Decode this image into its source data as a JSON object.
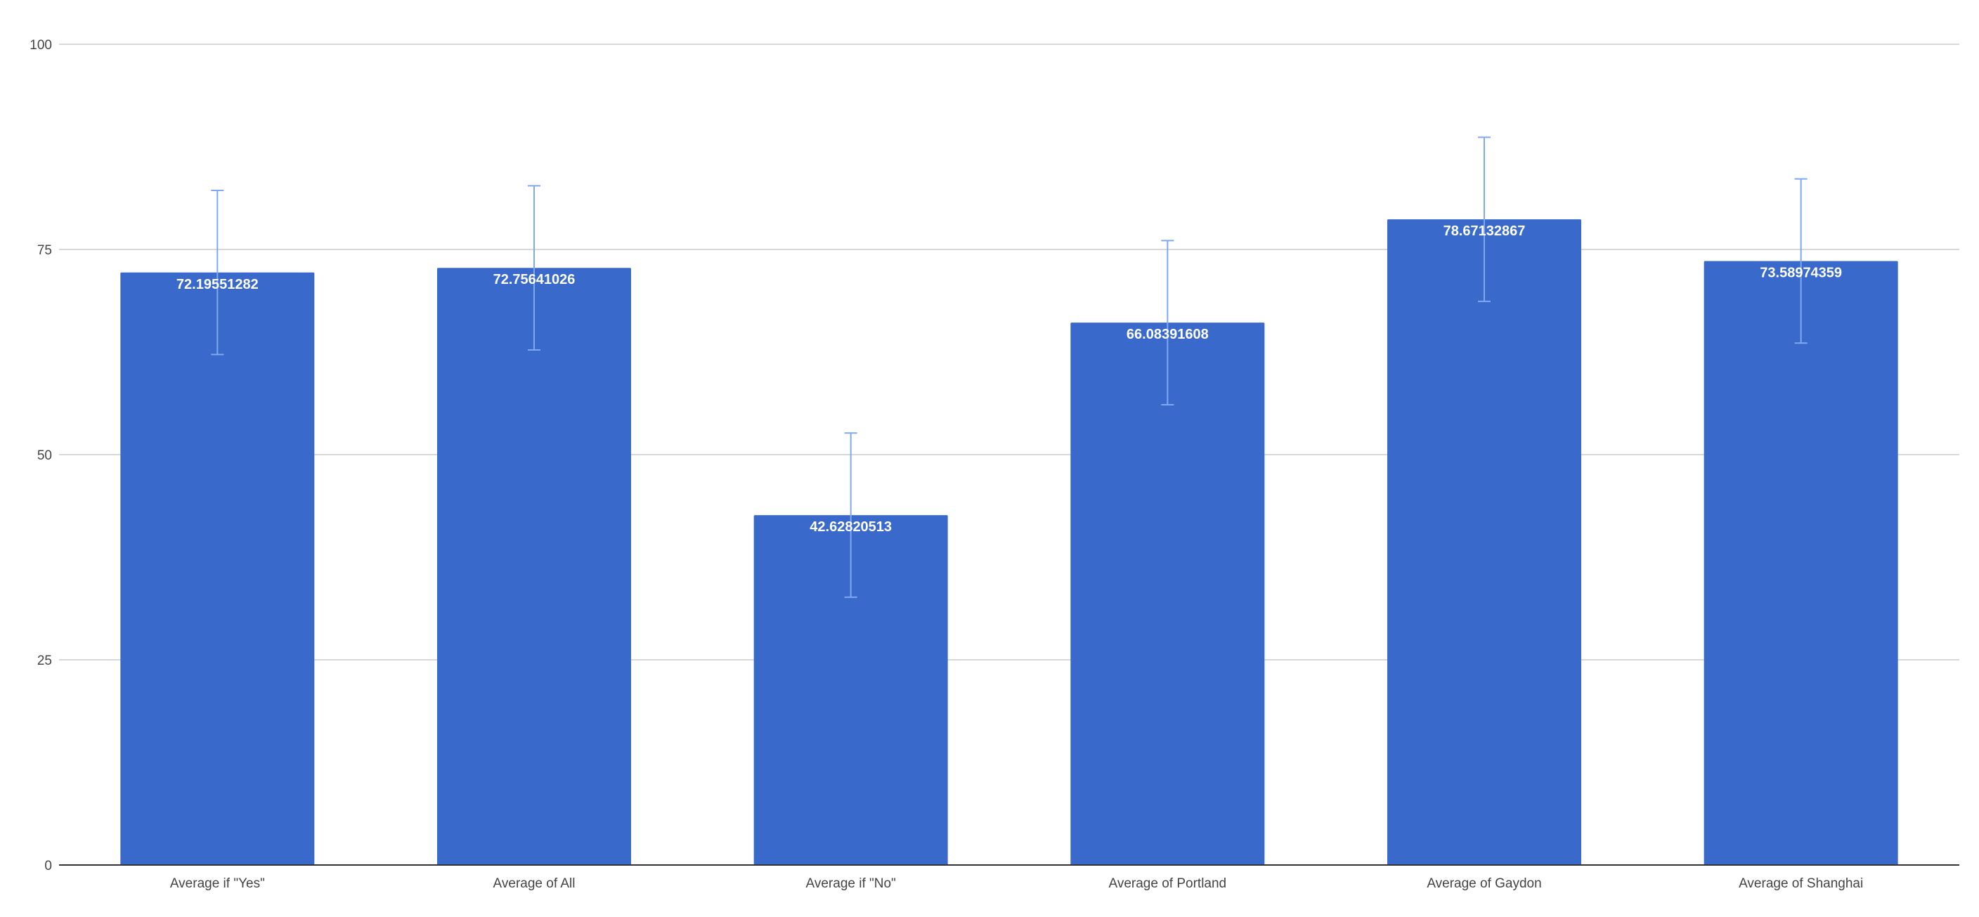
{
  "chart_data": {
    "type": "bar",
    "title": "",
    "xlabel": "",
    "ylabel": "",
    "ylim": [
      0,
      100
    ],
    "yticks": [
      0,
      25,
      50,
      75,
      100
    ],
    "grid": true,
    "error_bars": "fixed ±10",
    "error_margin": 10,
    "categories": [
      "Average if \"Yes\"",
      "Average of All",
      "Average if \"No\"",
      "Average of Portland",
      "Average of Gaydon",
      "Average of Shanghai"
    ],
    "values": [
      72.19551282,
      72.75641026,
      42.62820513,
      66.08391608,
      78.67132867,
      73.58974359
    ],
    "data_labels": [
      "72.19551282",
      "72.75641026",
      "42.62820513",
      "66.08391608",
      "78.67132867",
      "73.58974359"
    ],
    "colors": {
      "bar": "#3869CB",
      "error_bar": "#7FA8F2",
      "grid": "#CCCCCC",
      "axis": "#333333"
    }
  }
}
